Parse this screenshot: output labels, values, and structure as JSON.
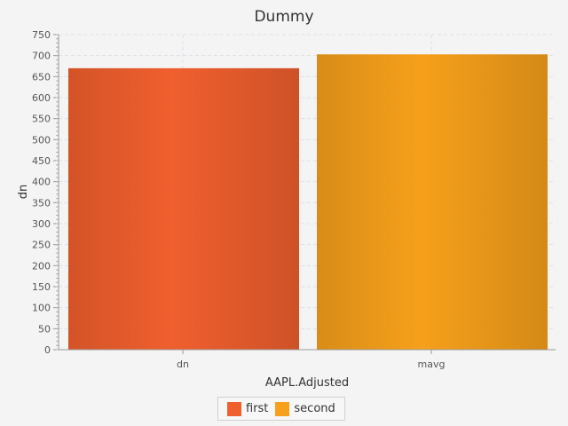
{
  "chart_data": {
    "type": "bar",
    "title": "Dummy",
    "xlabel": "AAPL.Adjusted",
    "ylabel": "dn",
    "categories": [
      "dn",
      "mavg"
    ],
    "series": [
      {
        "name": "first",
        "values": [
          670,
          0
        ],
        "color": "#f05f2e"
      },
      {
        "name": "second",
        "values": [
          0,
          703
        ],
        "color": "#f6a01b"
      }
    ],
    "ylim": [
      0,
      750
    ],
    "yticks": [
      0,
      50,
      100,
      150,
      200,
      250,
      300,
      350,
      400,
      450,
      500,
      550,
      600,
      650,
      700,
      750
    ],
    "grid": true,
    "legend_position": "bottom"
  }
}
